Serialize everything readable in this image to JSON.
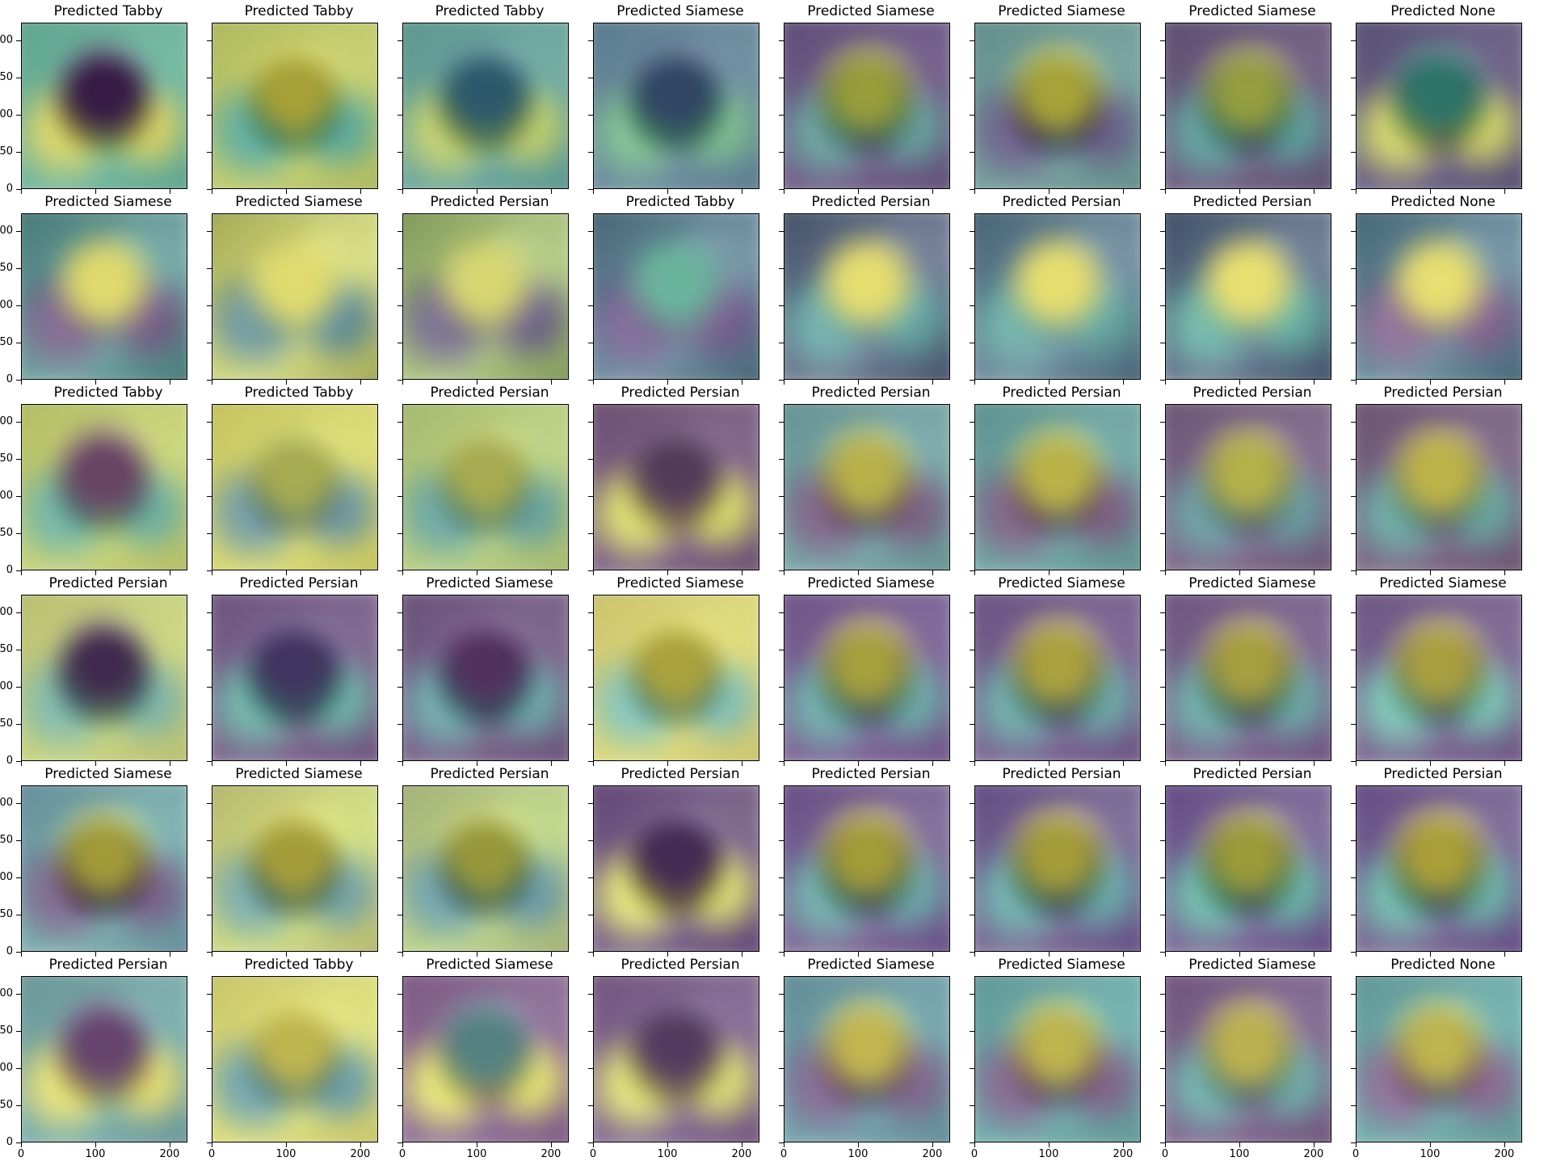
{
  "figure": {
    "rows": [
      {
        "titles": [
          "Predicted Tabby",
          "Predicted Tabby",
          "Predicted Tabby",
          "Predicted Siamese",
          "Predicted Siamese",
          "Predicted Siamese",
          "Predicted Siamese",
          "Predicted None"
        ],
        "photo": {
          "bg": "#8a8f92",
          "cat": "#2f3438",
          "light": "#c7c7c7"
        },
        "heat": [
          {
            "base": "#45b38d",
            "spot": "#3c0b4e",
            "spot2": "#e2df3b"
          },
          {
            "base": "#c7d63f",
            "spot": "#f0e336",
            "spot2": "#2ea48b"
          },
          {
            "base": "#3f9b8d",
            "spot": "#2a6f8b",
            "spot2": "#c0d846"
          },
          {
            "base": "#3e6f8d",
            "spot": "#31507d",
            "spot2": "#5bbf7a"
          },
          {
            "base": "#46266a",
            "spot": "#d6de3c",
            "spot2": "#3a8f8b"
          },
          {
            "base": "#4b8f88",
            "spot": "#f2e638",
            "spot2": "#3e2d6f"
          },
          {
            "base": "#43285f",
            "spot": "#d2df45",
            "spot2": "#2d8d8c"
          },
          {
            "base": "#3a2b63",
            "spot": "#2d9a86",
            "spot2": "#d7db3f"
          }
        ]
      },
      {
        "titles": [
          "Predicted Siamese",
          "Predicted Siamese",
          "Predicted Persian",
          "Predicted Tabby",
          "Predicted Persian",
          "Predicted Persian",
          "Predicted Persian",
          "Predicted None"
        ],
        "photo": {
          "bg": "#6a6f72",
          "cat": "#d7d6cc",
          "light": "#f2f2f2"
        },
        "heat": [
          {
            "base": "#2c7f7a",
            "spot": "#e5dc34",
            "spot2": "#44205e"
          },
          {
            "base": "#c9d142",
            "spot": "#e6df37",
            "spot2": "#2c6b75"
          },
          {
            "base": "#8fb448",
            "spot": "#d8d73c",
            "spot2": "#3a2b60"
          },
          {
            "base": "#2e5e7a",
            "spot": "#2aa07f",
            "spot2": "#43216a"
          },
          {
            "base": "#2b3f64",
            "spot": "#f0e338",
            "spot2": "#2b8c8a"
          },
          {
            "base": "#2d5a77",
            "spot": "#f2e338",
            "spot2": "#2c8f86"
          },
          {
            "base": "#233e63",
            "spot": "#f5e63a",
            "spot2": "#2d9a86"
          },
          {
            "base": "#2b5f7a",
            "spot": "#f3e33a",
            "spot2": "#5a2a6a"
          }
        ]
      },
      {
        "titles": [
          "Predicted Tabby",
          "Predicted Tabby",
          "Predicted Persian",
          "Predicted Persian",
          "Predicted Persian",
          "Predicted Persian",
          "Predicted Persian",
          "Predicted Persian"
        ],
        "photo": {
          "bg": "#a39b93",
          "cat": "#7b6c63",
          "light": "#e4dfd8"
        },
        "heat": [
          {
            "base": "#bcd246",
            "spot": "#5b2a66",
            "spot2": "#38a18c"
          },
          {
            "base": "#d9dc3c",
            "spot": "#c0d247",
            "spot2": "#3a7c8b"
          },
          {
            "base": "#a6cc56",
            "spot": "#c3d145",
            "spot2": "#2d8c8a"
          },
          {
            "base": "#4a205e",
            "spot": "#3d1d56",
            "spot2": "#d6db3c"
          },
          {
            "base": "#3f8c92",
            "spot": "#e0db3b",
            "spot2": "#4a2462"
          },
          {
            "base": "#338c8d",
            "spot": "#e3de39",
            "spot2": "#4b225f"
          },
          {
            "base": "#4a2a66",
            "spot": "#d8db3c",
            "spot2": "#2e7d8b"
          },
          {
            "base": "#47275f",
            "spot": "#e8df3a",
            "spot2": "#2d8e8a"
          }
        ]
      },
      {
        "titles": [
          "Predicted Persian",
          "Predicted Persian",
          "Predicted Siamese",
          "Predicted Siamese",
          "Predicted Siamese",
          "Predicted Siamese",
          "Predicted Siamese",
          "Predicted Siamese"
        ],
        "photo": {
          "bg": "#b7a8b7",
          "cat": "#4a3e46",
          "light": "#ece6ea"
        },
        "heat": [
          {
            "base": "#b9cd45",
            "spot": "#3a1e55",
            "spot2": "#4aa48b"
          },
          {
            "base": "#40205c",
            "spot": "#3b2f70",
            "spot2": "#2f9a86"
          },
          {
            "base": "#3b1c55",
            "spot": "#572a6b",
            "spot2": "#2f8c8c"
          },
          {
            "base": "#d8d53e",
            "spot": "#e6df37",
            "spot2": "#52b5a0"
          },
          {
            "base": "#42206a",
            "spot": "#e0dc3a",
            "spot2": "#2d8f8a"
          },
          {
            "base": "#3c1e62",
            "spot": "#e8de3b",
            "spot2": "#2d8d89"
          },
          {
            "base": "#40215e",
            "spot": "#e1db3c",
            "spot2": "#2c8d88"
          },
          {
            "base": "#3f2363",
            "spot": "#e4db3d",
            "spot2": "#43b39b"
          }
        ]
      },
      {
        "titles": [
          "Predicted Siamese",
          "Predicted Siamese",
          "Predicted Persian",
          "Predicted Persian",
          "Predicted Persian",
          "Predicted Persian",
          "Predicted Persian",
          "Predicted Persian"
        ],
        "photo": {
          "bg": "#a28cb0",
          "cat": "#3b3038",
          "light": "#f1f1f1"
        },
        "heat": [
          {
            "base": "#3d8f8c",
            "spot": "#e0db3b",
            "spot2": "#43205b"
          },
          {
            "base": "#c2d543",
            "spot": "#e8e13c",
            "spot2": "#3e8a88"
          },
          {
            "base": "#a4c851",
            "spot": "#d0d83e",
            "spot2": "#2e7b8a"
          },
          {
            "base": "#3b1a52",
            "spot": "#4b2766",
            "spot2": "#d6db3c"
          },
          {
            "base": "#43256a",
            "spot": "#e5dd3a",
            "spot2": "#2e8c89"
          },
          {
            "base": "#3b2566",
            "spot": "#e7df3b",
            "spot2": "#2d8f8b"
          },
          {
            "base": "#3d236a",
            "spot": "#d7dd3b",
            "spot2": "#2b9b86"
          },
          {
            "base": "#3c2366",
            "spot": "#f1e33a",
            "spot2": "#2f9a88"
          }
        ]
      },
      {
        "titles": [
          "Predicted Persian",
          "Predicted Tabby",
          "Predicted Siamese",
          "Predicted Persian",
          "Predicted Siamese",
          "Predicted Siamese",
          "Predicted Siamese",
          "Predicted None"
        ],
        "photo": {
          "bg": "#b4a5ad",
          "cat": "#7b6c73",
          "light": "#f0eef0"
        },
        "heat": [
          {
            "base": "#3b8d8a",
            "spot": "#5a2a6a",
            "spot2": "#e0db3b"
          },
          {
            "base": "#d6da3e",
            "spot": "#e9e23a",
            "spot2": "#2d7f8a"
          },
          {
            "base": "#5b2b6a",
            "spot": "#3d8f8b",
            "spot2": "#e2df3b"
          },
          {
            "base": "#4a2362",
            "spot": "#3b1d55",
            "spot2": "#d6db3c"
          },
          {
            "base": "#2f7d89",
            "spot": "#f0e33a",
            "spot2": "#4a2462"
          },
          {
            "base": "#2b8f8a",
            "spot": "#e9df39",
            "spot2": "#4b225f"
          },
          {
            "base": "#46225f",
            "spot": "#e5dc3b",
            "spot2": "#2f8f8a"
          },
          {
            "base": "#2c8f8a",
            "spot": "#e9df3a",
            "spot2": "#5a2a6a"
          }
        ]
      }
    ],
    "y_tick_labels": [
      "0",
      "50",
      "100",
      "150",
      "200"
    ],
    "x_tick_labels": [
      "0",
      "100",
      "200"
    ]
  }
}
